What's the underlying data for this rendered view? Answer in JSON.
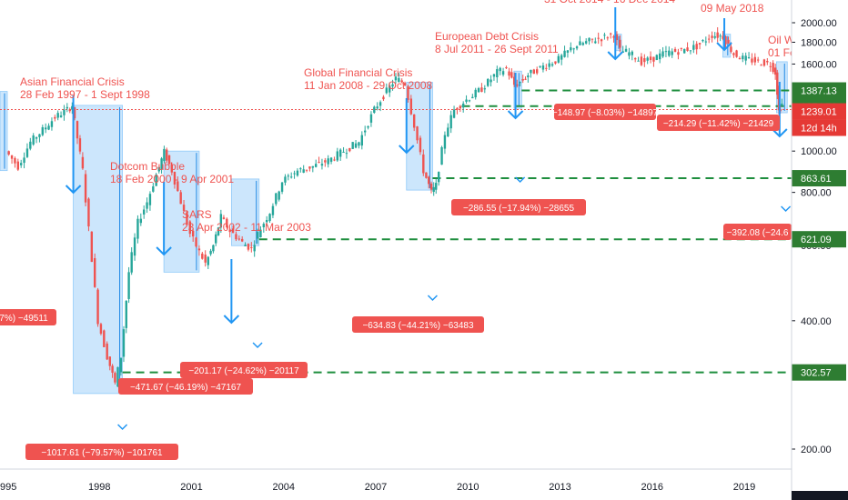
{
  "chart_data": {
    "type": "line",
    "title": "",
    "y_scale": "log",
    "ylim": [
      170,
      2300
    ],
    "xlim": [
      1995.0,
      2020.5
    ],
    "grid": false,
    "y_ticks": [
      "200.00",
      "400.00",
      "600.00",
      "800.00",
      "1000.00",
      "1600.00",
      "1800.00",
      "2000.00"
    ],
    "x_ticks": [
      "995",
      "1998",
      "2001",
      "2004",
      "2007",
      "2010",
      "2013",
      "2016",
      "2019"
    ],
    "series": [
      {
        "x": [
          1995.0,
          1995.4,
          1995.8,
          1996.2,
          1996.6,
          1997.0,
          1997.15,
          1997.5,
          1997.8,
          1998.0,
          1998.3,
          1998.55,
          1998.75,
          1999.0,
          1999.3,
          1999.6,
          1999.9,
          2000.15,
          2000.4,
          2000.7,
          2001.0,
          2001.3,
          2001.5,
          2001.75,
          2002.0,
          2002.3,
          2002.7,
          2003.0,
          2003.2,
          2003.6,
          2004.0,
          2004.5,
          2005.0,
          2005.5,
          2006.0,
          2006.5,
          2007.0,
          2007.3,
          2007.7,
          2008.0,
          2008.3,
          2008.6,
          2008.85,
          2009.0,
          2009.3,
          2009.6,
          2010.0,
          2010.5,
          2011.0,
          2011.3,
          2011.55,
          2011.75,
          2012.0,
          2012.5,
          2013.0,
          2013.5,
          2014.0,
          2014.5,
          2014.8,
          2015.0,
          2015.3,
          2015.7,
          2016.0,
          2016.5,
          2017.0,
          2017.5,
          2018.0,
          2018.35,
          2018.7,
          2019.0,
          2019.5,
          2019.9,
          2020.05,
          2020.15,
          2020.25
        ],
        "y": [
          1000,
          920,
          1050,
          1120,
          1200,
          1250,
          1280,
          900,
          560,
          400,
          330,
          285,
          330,
          520,
          680,
          760,
          880,
          995,
          900,
          760,
          640,
          580,
          545,
          600,
          700,
          650,
          610,
          590,
          640,
          720,
          850,
          900,
          920,
          950,
          1000,
          1050,
          1250,
          1350,
          1480,
          1440,
          1150,
          900,
          800,
          830,
          1100,
          1250,
          1320,
          1400,
          1530,
          1560,
          1430,
          1450,
          1510,
          1580,
          1640,
          1760,
          1810,
          1850,
          1880,
          1720,
          1700,
          1620,
          1640,
          1700,
          1720,
          1760,
          1870,
          1860,
          1690,
          1650,
          1620,
          1600,
          1530,
          1240,
          1290
        ]
      }
    ],
    "price_levels": [
      "1387.13",
      "1274.56",
      "863.61",
      "621.09",
      "302.57"
    ],
    "current_price": "1239.01",
    "countdown": "12d 14h",
    "events": [
      {
        "title": "Asian Financial Crisis",
        "dates": "28 Feb 1997 - 1 Sept 1998",
        "change": "−1017.61 (−79.57%) −101761"
      },
      {
        "title": "Dotcom Bubble",
        "dates": "18 Feb 2000 - 9 Apr 2001",
        "change": "−471.67 (−46.19%) −47167"
      },
      {
        "title": "SARS",
        "dates": "23 Apr 2002 - 11 Mar 2003",
        "change": "−201.17 (−24.62%) −20117"
      },
      {
        "title": "Global Financial Crisis",
        "dates": "11 Jan 2008 - 29 Oct 2008",
        "change": "−634.83 (−44.21%) −63483"
      },
      {
        "title": "European Debt Crisis",
        "dates": "8 Jul 2011 - 26 Sept 2011",
        "change": "−286.55 (−17.94%) −28655"
      },
      {
        "title": "",
        "dates": "31 Oct 2014 - 16 Dec 2014",
        "change": "−148.97 (−8.03%) −14897"
      },
      {
        "title": "",
        "dates": "09 May 2018",
        "change": "−214.29 (−11.42%) −21429"
      },
      {
        "title": "Oil W",
        "dates": "01 Fe",
        "change": "−392.08 (−24.6"
      }
    ],
    "left_edge_label": "7%) −49511"
  },
  "colors": {
    "annotation": "#ef5350",
    "arrow": "#2196f3",
    "box_fill": "#bbdefb",
    "level_line": "#1e8e3e",
    "level_tag": "#2e7d32",
    "current_line": "#ef5350",
    "candle_up": "#26a69a",
    "candle_down": "#ef5350"
  }
}
